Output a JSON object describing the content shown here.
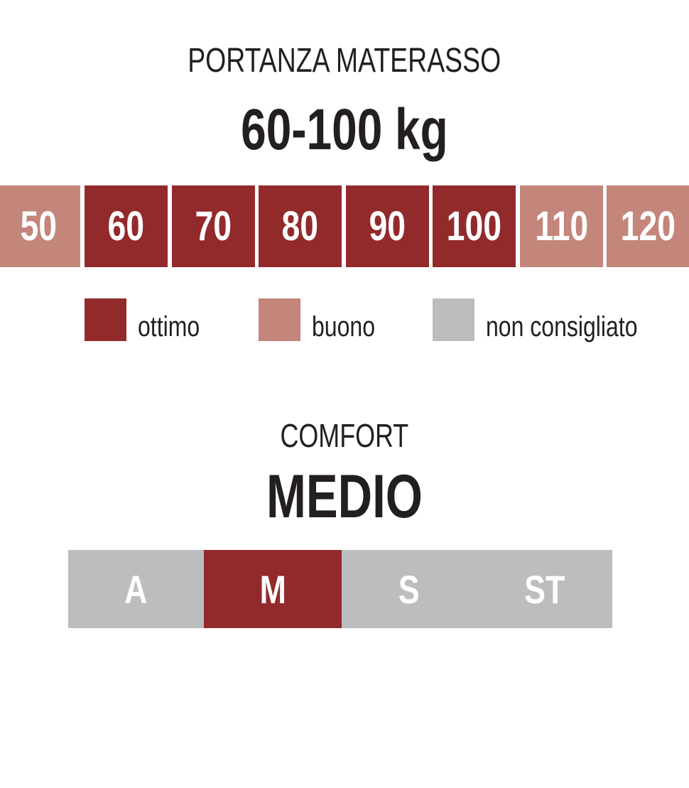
{
  "colors": {
    "ottimo": "#922a2b",
    "buono": "#c4857b",
    "non_consigliato": "#bbbdbf"
  },
  "portanza": {
    "title": "PORTANZA MATERASSO",
    "value": "60-100 kg",
    "scale": [
      {
        "label": "50",
        "rating": "buono"
      },
      {
        "label": "60",
        "rating": "ottimo"
      },
      {
        "label": "70",
        "rating": "ottimo"
      },
      {
        "label": "80",
        "rating": "ottimo"
      },
      {
        "label": "90",
        "rating": "ottimo"
      },
      {
        "label": "100",
        "rating": "ottimo"
      },
      {
        "label": "110",
        "rating": "buono"
      },
      {
        "label": "120",
        "rating": "buono"
      }
    ]
  },
  "legend": [
    {
      "key": "ottimo",
      "label": "ottimo"
    },
    {
      "key": "buono",
      "label": "buono"
    },
    {
      "key": "non_consigliato",
      "label": "non consigliato"
    }
  ],
  "comfort": {
    "title": "COMFORT",
    "value": "MEDIO",
    "scale": [
      {
        "label": "A",
        "selected": false
      },
      {
        "label": "M",
        "selected": true
      },
      {
        "label": "S",
        "selected": false
      },
      {
        "label": "ST",
        "selected": false
      }
    ]
  }
}
